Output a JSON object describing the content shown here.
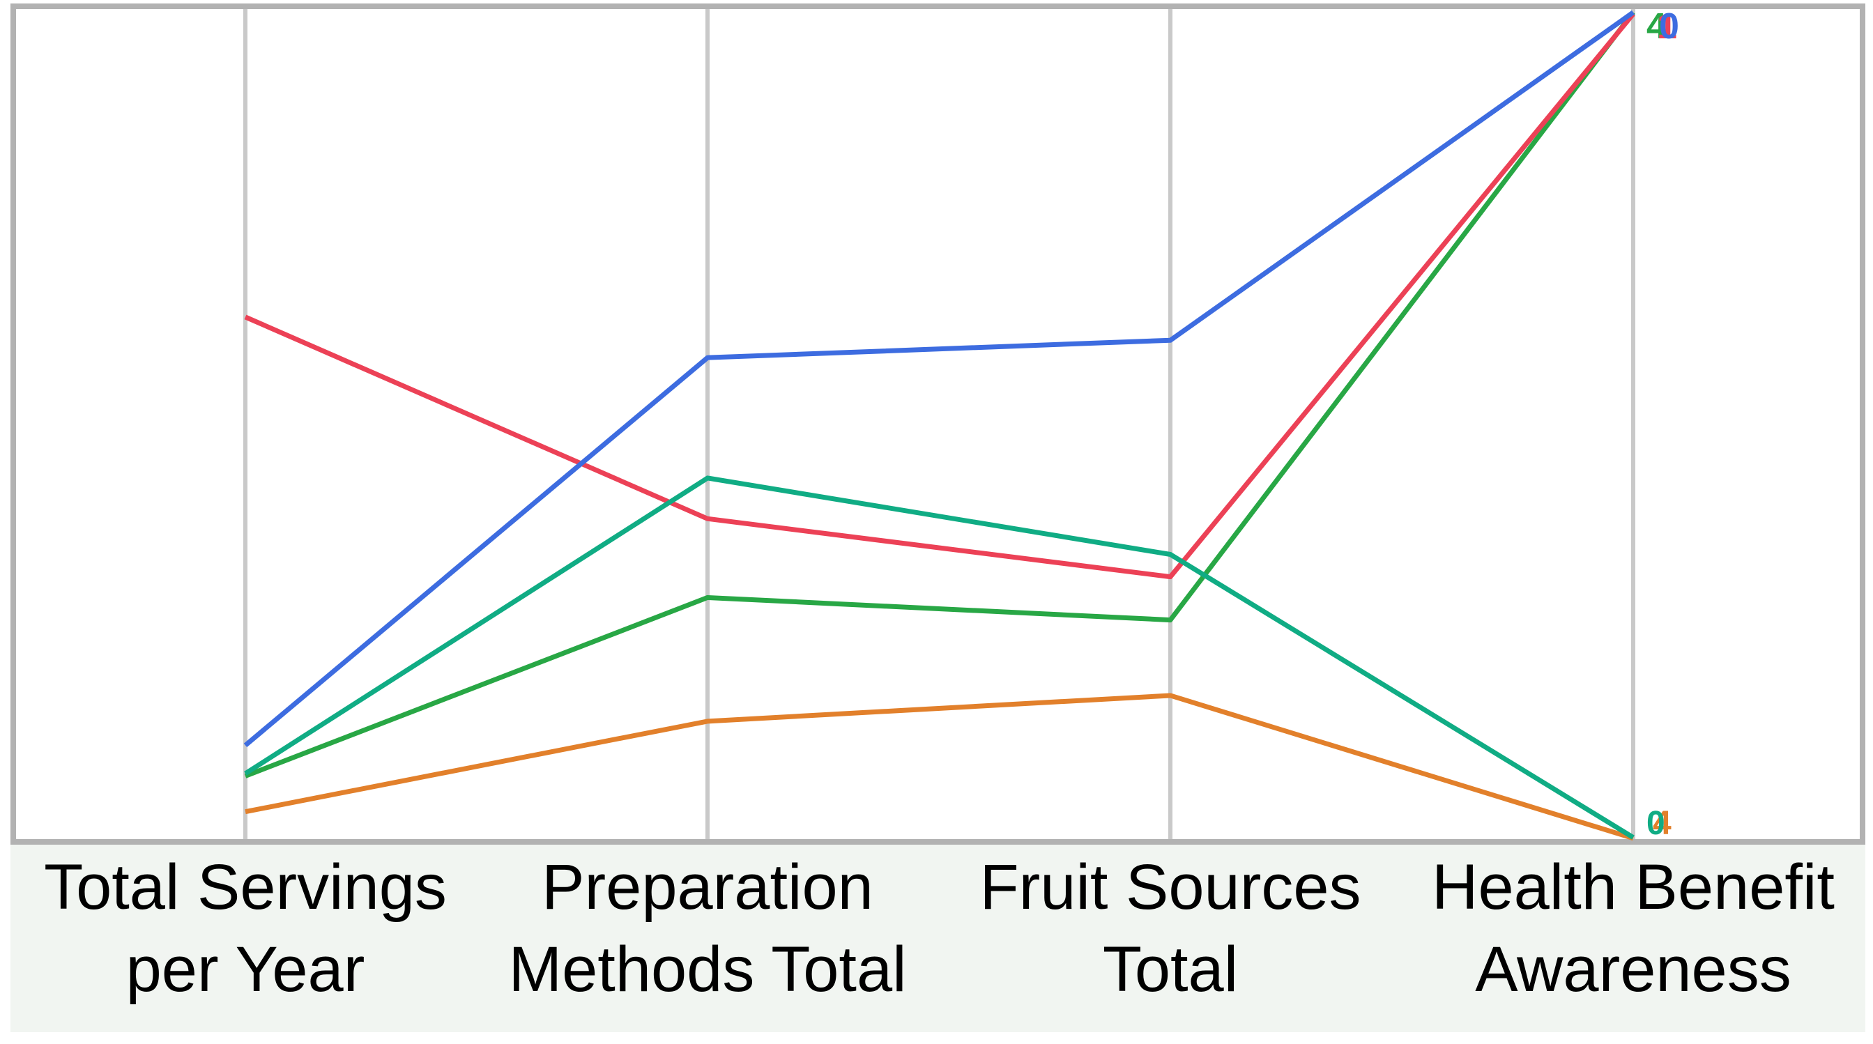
{
  "chart": {
    "plot_border_color": "#b2b2b2",
    "axis_line_color": "#c9c9c9",
    "band_background": "#f1f5f1",
    "label_color": "#000000",
    "page_background": "#ffffff"
  },
  "axis_labels": [
    {
      "line1": "Total Servings",
      "line2": "per Year"
    },
    {
      "line1": "Preparation",
      "line2": "Methods Total"
    },
    {
      "line1": "Fruit Sources",
      "line2": "Total"
    },
    {
      "line1": "Health Benefit",
      "line2": "Awareness"
    }
  ],
  "endpoint_labels": {
    "top": [
      {
        "text": "4",
        "color": "#28a745",
        "dx": 2,
        "name": "endpoint-value-green"
      },
      {
        "text": "1",
        "color": "#ec4156",
        "dx": 17,
        "name": "endpoint-value-crimson"
      },
      {
        "text": "0",
        "color": "#3d6ce0",
        "dx": 20,
        "name": "endpoint-value-blue"
      }
    ],
    "bottom": [
      {
        "text": "4",
        "color": "#e2802b",
        "dx": 9,
        "name": "endpoint-value-orange"
      },
      {
        "text": "0",
        "color": "#10ac84",
        "dx": 0,
        "name": "endpoint-value-teal"
      }
    ]
  },
  "chart_data": {
    "type": "line",
    "subtype": "parallel-coordinates",
    "title": "",
    "axes": [
      "Total Servings per Year",
      "Preparation Methods Total",
      "Fruit Sources Total",
      "Health Benefit Awareness"
    ],
    "value_scale": "relative position on each vertical axis, 0 = axis bottom, 1 = axis top (no numeric tick labels are shown in the image)",
    "series": [
      {
        "name": "blue",
        "color": "#3d6ce0",
        "values": [
          0.113,
          0.58,
          0.601,
          0.996
        ]
      },
      {
        "name": "crimson",
        "color": "#ec4156",
        "values": [
          0.629,
          0.386,
          0.316,
          0.994
        ]
      },
      {
        "name": "teal",
        "color": "#10ac84",
        "values": [
          0.079,
          0.435,
          0.343,
          0.002
        ]
      },
      {
        "name": "green",
        "color": "#28a745",
        "values": [
          0.076,
          0.291,
          0.264,
          0.996
        ]
      },
      {
        "name": "orange",
        "color": "#e2802b",
        "values": [
          0.033,
          0.142,
          0.173,
          0.001
        ]
      }
    ],
    "draw_order": [
      "green",
      "crimson",
      "blue",
      "orange",
      "teal"
    ],
    "legend": "none",
    "grid": "vertical axis lines only",
    "ylim": [
      0,
      1
    ]
  }
}
